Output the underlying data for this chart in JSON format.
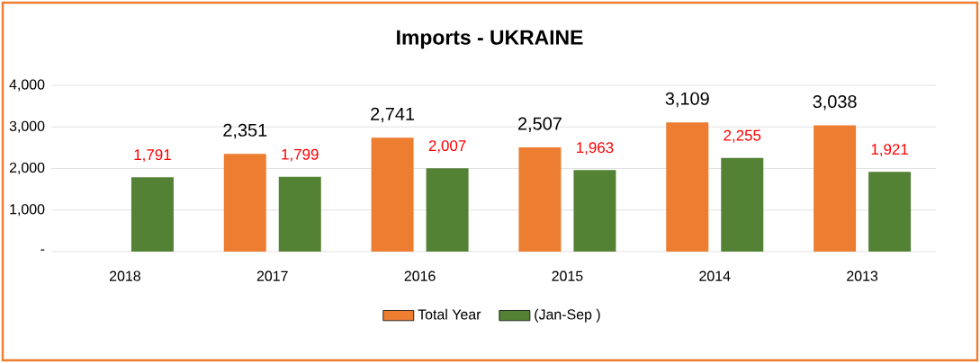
{
  "chart_data": {
    "type": "bar",
    "title": "Imports  - UKRAINE",
    "categories": [
      "2018",
      "2017",
      "2016",
      "2015",
      "2014",
      "2013"
    ],
    "series": [
      {
        "name": "Total Year",
        "color": "#ed7d31",
        "values": [
          null,
          2351,
          2741,
          2507,
          3109,
          3038
        ],
        "value_labels": [
          null,
          "2,351",
          "2,741",
          "2,507",
          "3,109",
          "3,038"
        ]
      },
      {
        "name": "(Jan-Sep )",
        "color": "#548235",
        "values": [
          1791,
          1799,
          2007,
          1963,
          2255,
          1921
        ],
        "value_labels": [
          "1,791",
          "1,799",
          "2,007",
          "1,963",
          "2,255",
          "1,921"
        ]
      }
    ],
    "ylim": [
      0,
      4000
    ],
    "yticks": [
      {
        "value": 0,
        "label": "-"
      },
      {
        "value": 1000,
        "label": "1,000"
      },
      {
        "value": 2000,
        "label": "2,000"
      },
      {
        "value": 3000,
        "label": "3,000"
      },
      {
        "value": 4000,
        "label": "4,000"
      }
    ],
    "grid": "y",
    "legend": "bottom"
  }
}
